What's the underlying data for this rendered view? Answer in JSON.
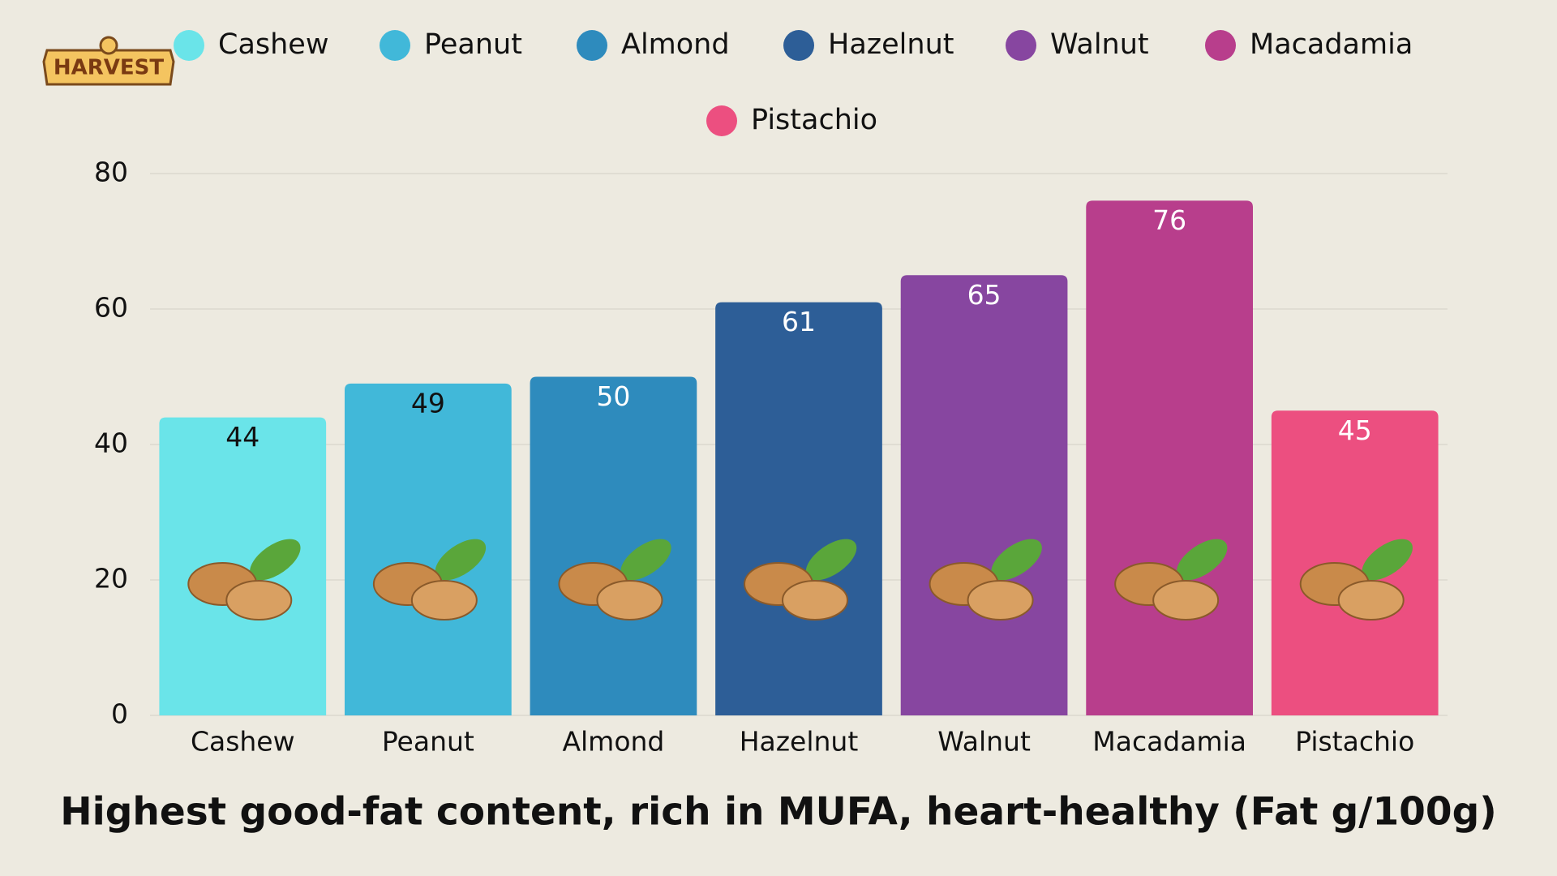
{
  "logo": "HARVEST",
  "chart_data": {
    "type": "bar",
    "title": "Highest good-fat content, rich in MUFA, heart-healthy (Fat g/100g)",
    "categories": [
      "Cashew",
      "Peanut",
      "Almond",
      "Hazelnut",
      "Walnut",
      "Macadamia",
      "Pistachio"
    ],
    "values": [
      44,
      49,
      50,
      61,
      65,
      76,
      45
    ],
    "colors": [
      "#6ae4e9",
      "#41b8d9",
      "#2e8bbd",
      "#2d5e97",
      "#8746a0",
      "#b83e8c",
      "#ec4f80"
    ],
    "ylim": [
      0,
      80
    ],
    "yticks": [
      0,
      20,
      40,
      60,
      80
    ],
    "grid": true,
    "legend": "top"
  }
}
